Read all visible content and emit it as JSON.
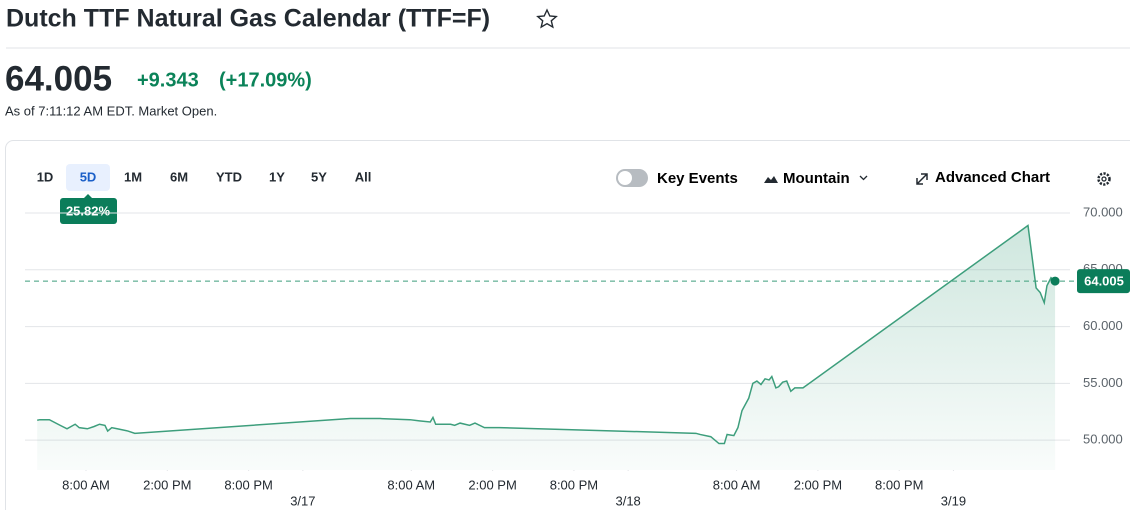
{
  "header": {
    "title": "Dutch TTF Natural Gas Calendar (TTF=F)"
  },
  "quote": {
    "price": "64.005",
    "change": "+9.343",
    "change_percent": "(+17.09%)",
    "as_of": "As of 7:11:12 AM EDT. Market Open."
  },
  "toolbar": {
    "ranges": [
      "1D",
      "5D",
      "1M",
      "6M",
      "YTD",
      "1Y",
      "5Y",
      "All"
    ],
    "selected_range": 1,
    "range_return": "25.82%",
    "key_events": "Key Events",
    "chart_style": "Mountain",
    "advanced_chart": "Advanced Chart"
  },
  "chart_data": {
    "type": "area",
    "color": "#3d9e7c",
    "grid": true,
    "x": [
      -19.6,
      -19.4,
      -18.7,
      -17.9,
      -17.4,
      -16.8,
      -16.5,
      -15.9,
      -15.4,
      -15.0,
      -14.6,
      -14.4,
      -14.1,
      -13.7,
      -12.9,
      -12.4,
      3.5,
      5.7,
      7.9,
      8.6,
      9.4,
      9.6,
      9.8,
      10.9,
      11.2,
      11.6,
      12.3,
      12.7,
      13.4,
      14.5,
      29.0,
      29.3,
      30.1,
      30.7,
      31.1,
      31.3,
      31.8,
      32.1,
      32.4,
      32.9,
      33.2,
      33.5,
      33.8,
      34.1,
      34.4,
      34.6,
      34.9,
      35.1,
      35.4,
      35.7,
      36.0,
      36.3,
      36.9,
      53.5,
      54.1,
      54.4,
      54.7,
      54.9,
      55.2,
      55.5
    ],
    "values": [
      51.75,
      51.8,
      51.8,
      51.3,
      51.0,
      51.4,
      51.1,
      51.0,
      51.2,
      51.4,
      51.3,
      50.8,
      51.1,
      51.0,
      50.8,
      50.6,
      51.9,
      51.9,
      51.8,
      51.7,
      51.6,
      52.0,
      51.4,
      51.4,
      51.3,
      51.5,
      51.3,
      51.5,
      51.1,
      51.1,
      50.6,
      50.5,
      50.3,
      49.7,
      49.7,
      50.5,
      50.4,
      51.1,
      52.6,
      53.7,
      55.0,
      55.2,
      54.9,
      55.4,
      55.3,
      55.6,
      54.6,
      54.7,
      55.1,
      55.2,
      54.3,
      54.6,
      54.6,
      68.9,
      63.4,
      63.0,
      62.1,
      63.6,
      64.3,
      64.005
    ],
    "xlim": [
      -20.5,
      56.6
    ],
    "ylim": [
      47.37,
      70.0
    ],
    "yticks": [
      {
        "value": 50,
        "label": "50.000"
      },
      {
        "value": 55,
        "label": "55.000"
      },
      {
        "value": 60,
        "label": "60.000"
      },
      {
        "value": 65,
        "label": "65.000"
      },
      {
        "value": 70,
        "label": "70.000"
      }
    ],
    "xticks": [
      {
        "value": -16,
        "label": "8:00 AM"
      },
      {
        "value": -10,
        "label": "2:00 PM"
      },
      {
        "value": -4,
        "label": "8:00 PM"
      },
      {
        "value": 8,
        "label": "8:00 AM"
      },
      {
        "value": 14,
        "label": "2:00 PM"
      },
      {
        "value": 20,
        "label": "8:00 PM"
      },
      {
        "value": 32,
        "label": "8:00 AM"
      },
      {
        "value": 38,
        "label": "2:00 PM"
      },
      {
        "value": 44,
        "label": "8:00 PM"
      }
    ],
    "date_ticks": [
      {
        "value": 0,
        "label": "3/17"
      },
      {
        "value": 24,
        "label": "3/18"
      },
      {
        "value": 48,
        "label": "3/19"
      }
    ],
    "current_value": 64.005
  }
}
